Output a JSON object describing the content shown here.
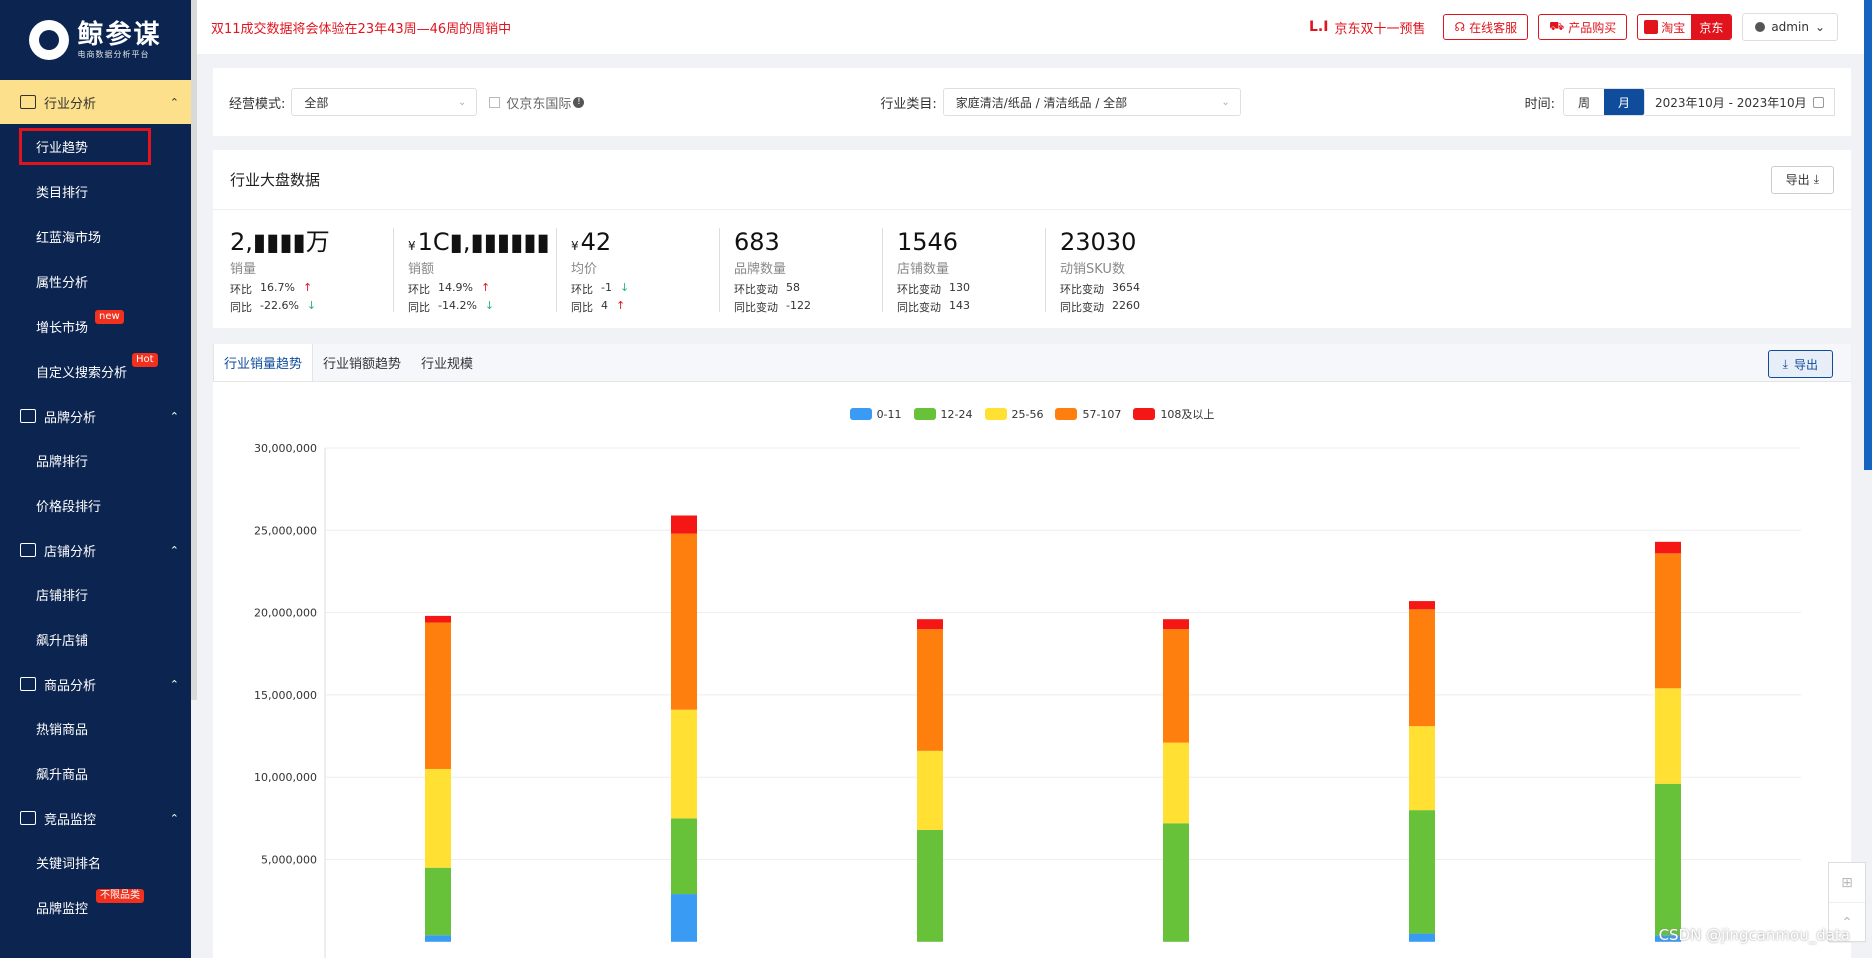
{
  "brand": {
    "title": "鲸参谋",
    "subtitle": "电商数据分析平台"
  },
  "sidebar": {
    "groups": [
      {
        "label": "行业分析",
        "items": [
          {
            "label": "行业趋势"
          },
          {
            "label": "类目排行"
          },
          {
            "label": "红蓝海市场"
          },
          {
            "label": "属性分析"
          },
          {
            "label": "增长市场",
            "badge": "new"
          },
          {
            "label": "自定义搜索分析",
            "badge": "Hot"
          }
        ]
      },
      {
        "label": "品牌分析",
        "items": [
          {
            "label": "品牌排行"
          },
          {
            "label": "价格段排行"
          }
        ]
      },
      {
        "label": "店铺分析",
        "items": [
          {
            "label": "店铺排行"
          },
          {
            "label": "飙升店铺"
          }
        ]
      },
      {
        "label": "商品分析",
        "items": [
          {
            "label": "热销商品"
          },
          {
            "label": "飙升商品"
          }
        ]
      },
      {
        "label": "竞品监控",
        "items": [
          {
            "label": "关键词排名"
          },
          {
            "label": "品牌监控",
            "badge": "不限品类"
          }
        ]
      }
    ]
  },
  "topbar": {
    "notice": "双11成交数据将会体验在23年43周—46周的周销中",
    "jd_logo": "L.I",
    "jd_presale": "京东双十一预售",
    "service": "在线客服",
    "purchase": "产品购买",
    "platform_tb": "淘宝",
    "platform_jd": "京东",
    "user": "admin"
  },
  "filters": {
    "mode_label": "经营模式:",
    "mode_value": "全部",
    "jd_intl": "仅京东国际",
    "category_label": "行业类目:",
    "category_value": "家庭清洁/纸品 / 清洁纸品 / 全部",
    "time_label": "时间:",
    "week": "周",
    "month": "月",
    "range": "2023年10月 - 2023年10月"
  },
  "overview": {
    "title": "行业大盘数据",
    "export": "导出",
    "stats": [
      {
        "value": "2,▮▮▮▮万",
        "label": "销量",
        "rows": [
          [
            "环比",
            "16.7%",
            "up"
          ],
          [
            "同比",
            "-22.6%",
            "down"
          ]
        ]
      },
      {
        "currency": "¥",
        "value": "1C▮,▮▮▮▮▮▮",
        "label": "销额",
        "rows": [
          [
            "环比",
            "14.9%",
            "up"
          ],
          [
            "同比",
            "-14.2%",
            "down"
          ]
        ]
      },
      {
        "currency": "¥",
        "value": "42",
        "label": "均价",
        "rows": [
          [
            "环比",
            "-1",
            "down"
          ],
          [
            "同比",
            "4",
            "up"
          ]
        ]
      },
      {
        "value": "683",
        "label": "品牌数量",
        "rows": [
          [
            "环比变动",
            "58",
            ""
          ],
          [
            "同比变动",
            "-122",
            ""
          ]
        ]
      },
      {
        "value": "1546",
        "label": "店铺数量",
        "rows": [
          [
            "环比变动",
            "130",
            ""
          ],
          [
            "同比变动",
            "143",
            ""
          ]
        ]
      },
      {
        "value": "23030",
        "label": "动销SKU数",
        "rows": [
          [
            "环比变动",
            "3654",
            ""
          ],
          [
            "同比变动",
            "2260",
            ""
          ]
        ]
      }
    ]
  },
  "tabs": {
    "items": [
      "行业销量趋势",
      "行业销额趋势",
      "行业规模"
    ],
    "export": "导出"
  },
  "chart_data": {
    "type": "bar",
    "stacked": true,
    "ylim": [
      0,
      30000000
    ],
    "yticks": [
      "5,000,000",
      "10,000,000",
      "15,000,000",
      "20,000,000",
      "25,000,000",
      "30,000,000"
    ],
    "series": [
      {
        "name": "0-11",
        "color": "#3a9bf4",
        "values": [
          400000,
          2900000,
          0,
          0,
          500000,
          400000
        ]
      },
      {
        "name": "12-24",
        "color": "#67c23a",
        "values": [
          4100000,
          4600000,
          6800000,
          7200000,
          7500000,
          9200000
        ]
      },
      {
        "name": "25-56",
        "color": "#ffe033",
        "values": [
          6000000,
          6600000,
          4800000,
          4900000,
          5100000,
          5800000
        ]
      },
      {
        "name": "57-107",
        "color": "#ff7f0e",
        "values": [
          8900000,
          10700000,
          7400000,
          6900000,
          7100000,
          8200000
        ]
      },
      {
        "name": "108及以上",
        "color": "#f51616",
        "values": [
          400000,
          1100000,
          600000,
          600000,
          500000,
          700000
        ]
      }
    ]
  },
  "tools": {
    "qr": "⊞",
    "top": "⌃"
  },
  "watermark": "CSDN @jingcanmou_data"
}
